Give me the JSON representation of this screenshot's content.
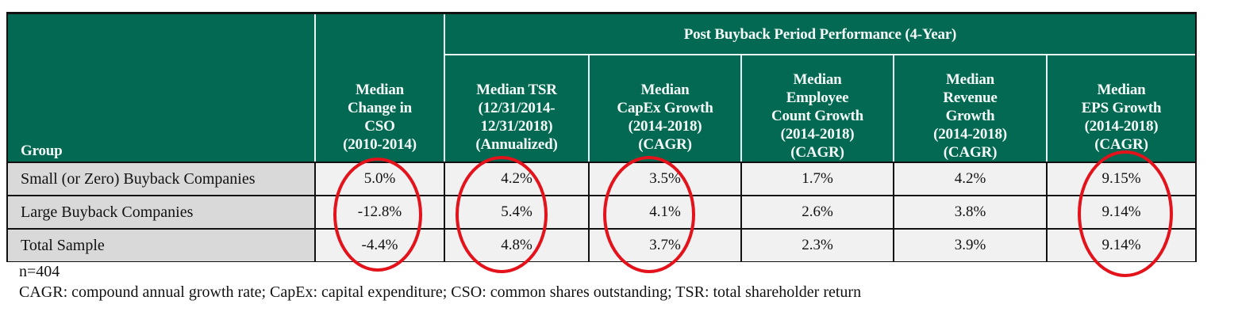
{
  "table": {
    "header": {
      "group_label": "Group",
      "cso_label": "Median Change in CSO (2010-2014)",
      "cso_lines": [
        "Median",
        "Change in",
        "CSO",
        "(2010-2014)"
      ],
      "post_period_label": "Post Buyback Period Performance (4-Year)",
      "columns": [
        {
          "lines": [
            "Median TSR",
            "(12/31/2014-",
            "12/31/2018)",
            "(Annualized)"
          ]
        },
        {
          "lines": [
            "Median",
            "CapEx Growth",
            "(2014-2018)",
            "(CAGR)"
          ]
        },
        {
          "lines": [
            "Median",
            "Employee",
            "Count Growth",
            "(2014-2018)",
            "(CAGR)"
          ]
        },
        {
          "lines": [
            "Median",
            "Revenue",
            "Growth",
            "(2014-2018)",
            "(CAGR)"
          ]
        },
        {
          "lines": [
            "Median",
            "EPS Growth",
            "(2014-2018)",
            "(CAGR)"
          ]
        }
      ]
    },
    "rows": [
      {
        "group": "Small (or Zero) Buyback Companies",
        "values": [
          "5.0%",
          "4.2%",
          "3.5%",
          "1.7%",
          "4.2%",
          "9.15%"
        ]
      },
      {
        "group": "Large Buyback Companies",
        "values": [
          "-12.8%",
          "5.4%",
          "4.1%",
          "2.6%",
          "3.8%",
          "9.14%"
        ]
      },
      {
        "group": "Total Sample",
        "values": [
          "-4.4%",
          "4.8%",
          "3.7%",
          "2.3%",
          "3.9%",
          "9.14%"
        ]
      }
    ],
    "highlighted_columns": [
      "Median Change in CSO",
      "Median TSR",
      "Median CapEx Growth",
      "Median EPS Growth"
    ]
  },
  "footnotes": {
    "sample_size": "n=404",
    "definitions": "CAGR: compound annual growth rate; CapEx: capital expenditure; CSO: common shares outstanding; TSR: total shareholder return"
  },
  "colors": {
    "header_green": "#046952",
    "header_text": "#f4fbf8",
    "group_cell_bg": "#d9d9d9",
    "value_cell_bg": "#f1f1f1",
    "highlight_red": "#e3121b"
  }
}
